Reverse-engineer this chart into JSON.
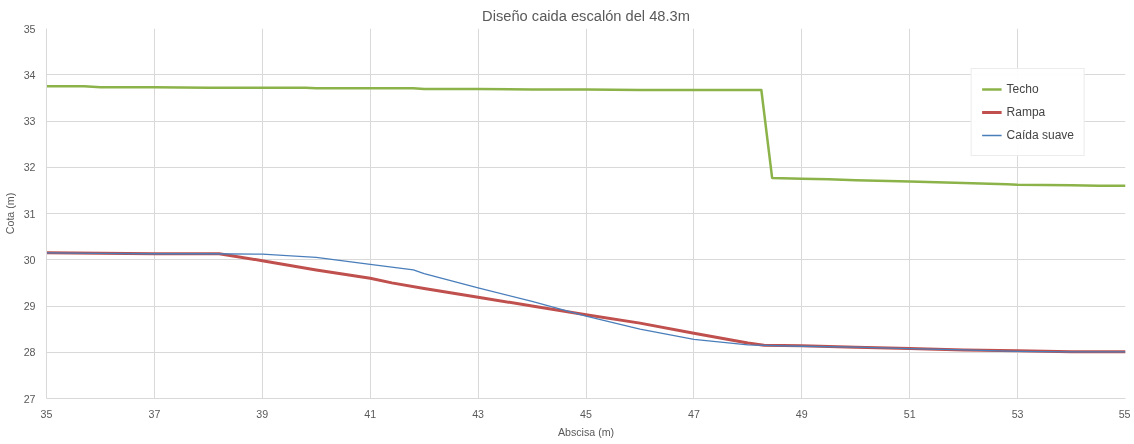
{
  "chart_data": {
    "type": "line",
    "title": "Diseño caida escalón del 48.3m",
    "xlabel": "Abscisa (m)",
    "ylabel": "Cota (m)",
    "xlim": [
      35,
      55
    ],
    "xticks": [
      35,
      37,
      39,
      41,
      43,
      45,
      47,
      49,
      51,
      53,
      55
    ],
    "ylim": [
      27,
      35
    ],
    "yticks": [
      27,
      28,
      29,
      30,
      31,
      32,
      33,
      34,
      35
    ],
    "grid": true,
    "legend": "top right",
    "marker": "none",
    "line_style": "solid",
    "series": [
      {
        "name": "Techo",
        "color": "#8cb34a",
        "x": [
          35,
          35.7,
          36,
          37,
          38,
          39,
          39.8,
          40,
          41,
          41.8,
          42,
          43,
          44,
          45,
          46,
          47,
          48.25,
          48.45,
          49,
          49.5,
          50,
          51,
          52,
          52.8,
          53,
          54,
          54.5,
          55
        ],
        "values": [
          33.75,
          33.75,
          33.73,
          33.73,
          33.72,
          33.72,
          33.72,
          33.71,
          33.71,
          33.71,
          33.69,
          33.69,
          33.68,
          33.68,
          33.67,
          33.67,
          33.67,
          31.77,
          31.75,
          31.74,
          31.72,
          31.69,
          31.66,
          31.63,
          31.62,
          31.61,
          31.6,
          31.6
        ]
      },
      {
        "name": "Rampa",
        "color": "#c0504d",
        "x": [
          35,
          36,
          37,
          38,
          38.2,
          39,
          40,
          41,
          41.4,
          42,
          43,
          44,
          45,
          46,
          47,
          48,
          48.3,
          49,
          50,
          51,
          52,
          53,
          54,
          55
        ],
        "values": [
          30.15,
          30.14,
          30.13,
          30.13,
          30.13,
          29.98,
          29.78,
          29.6,
          29.5,
          29.38,
          29.19,
          29.0,
          28.81,
          28.63,
          28.41,
          28.2,
          28.15,
          28.14,
          28.11,
          28.08,
          28.05,
          28.03,
          28.01,
          28.01
        ]
      },
      {
        "name": "Caída suave",
        "color": "#4a7ebb",
        "x": [
          35,
          36,
          37,
          38,
          39,
          40,
          41,
          41.8,
          42,
          43,
          44,
          45,
          46,
          47,
          48,
          48.3,
          49,
          50,
          51,
          52,
          53,
          54,
          55
        ],
        "values": [
          30.15,
          30.14,
          30.13,
          30.13,
          30.12,
          30.05,
          29.9,
          29.78,
          29.7,
          29.39,
          29.1,
          28.78,
          28.5,
          28.28,
          28.16,
          28.15,
          28.13,
          28.11,
          28.08,
          28.05,
          28.02,
          28.01,
          28.01
        ]
      }
    ]
  }
}
